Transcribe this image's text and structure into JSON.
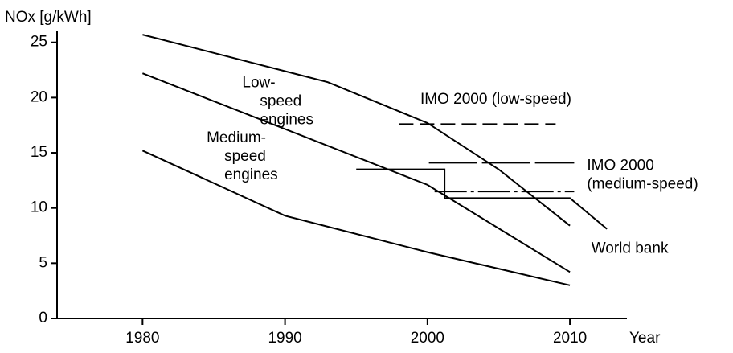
{
  "chart_data": {
    "type": "line",
    "ylabel": "NOx [g/kWh]",
    "xlabel": "Year",
    "xlim": [
      1974,
      2014
    ],
    "xticks": [
      1980,
      1990,
      2000,
      2010
    ],
    "ylim": [
      0,
      26
    ],
    "yticks": [
      0,
      5,
      10,
      15,
      20,
      25
    ],
    "series": [
      {
        "color": "#000000",
        "dash": "none",
        "x": [
          1980,
          1993,
          2000,
          2005,
          2010
        ],
        "values": [
          25.7,
          21.4,
          17.7,
          13.5,
          8.4
        ]
      },
      {
        "color": "#000000",
        "dash": "none",
        "x": [
          1980,
          2000,
          2010
        ],
        "values": [
          22.2,
          12.1,
          4.2
        ]
      },
      {
        "color": "#000000",
        "dash": "none",
        "x": [
          1980,
          1990,
          2000,
          2010
        ],
        "values": [
          15.2,
          9.3,
          6.0,
          3.0
        ]
      },
      {
        "color": "#000000",
        "dash": "18 8",
        "x": [
          1998,
          2009
        ],
        "values": [
          17.6,
          17.6
        ]
      },
      {
        "color": "#000000",
        "dash": "60 6",
        "x": [
          2000.1,
          2010.3
        ],
        "values": [
          14.1,
          14.1
        ]
      },
      {
        "color": "#000000",
        "dash": "40 5 4 5",
        "x": [
          2000.5,
          2010.3
        ],
        "values": [
          11.5,
          11.5
        ]
      },
      {
        "color": "#000000",
        "dash": "none",
        "x": [
          1995,
          2001.2,
          2001.2,
          2010,
          2012.6
        ],
        "values": [
          13.5,
          13.5,
          10.9,
          10.9,
          8.1
        ]
      }
    ],
    "annotations": [
      {
        "lines": [
          "Low-",
          "speed",
          "engines"
        ],
        "x": 1987,
        "y": 21.3
      },
      {
        "lines": [
          "Medium-",
          "speed",
          "engines"
        ],
        "x": 1984.5,
        "y": 16.3
      },
      {
        "lines": [
          "IMO 2000 (low-speed)"
        ],
        "x": 1999.5,
        "y": 19.8
      },
      {
        "lines": [
          "IMO 2000",
          "(medium-speed)"
        ],
        "x": 2011.2,
        "y": 13.8
      },
      {
        "lines": [
          "World bank"
        ],
        "x": 2011.5,
        "y": 6.3
      }
    ]
  }
}
